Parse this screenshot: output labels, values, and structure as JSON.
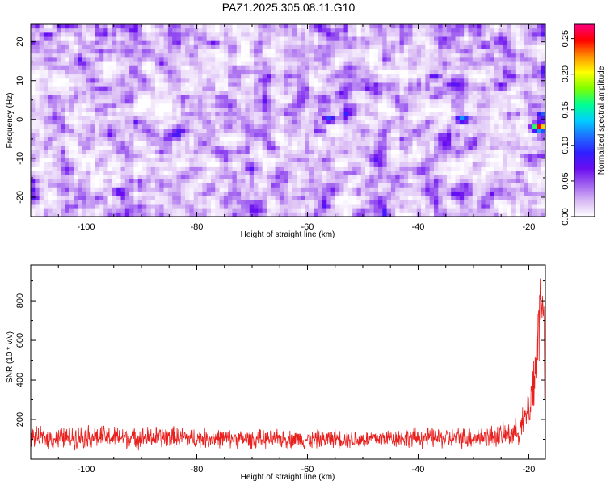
{
  "title": "PAZ1.2025.305.08.11.G10",
  "colors": {
    "snr_line": "#e8201e",
    "colormap": [
      "#ffffff",
      "#d8b8f4",
      "#a060f0",
      "#6a0df0",
      "#3020ff",
      "#1e6fff",
      "#00cfff",
      "#00ff90",
      "#80ff00",
      "#ffff00",
      "#ff9000",
      "#ff0000",
      "#ff0080"
    ]
  },
  "chart_data": [
    {
      "type": "heatmap",
      "name": "spectrogram",
      "xlabel": "Height of straight line (km)",
      "ylabel": "Frequency (Hz)",
      "xlim": [
        -110,
        -17
      ],
      "ylim": [
        -25,
        24.5
      ],
      "xticks": [
        -100,
        -80,
        -60,
        -40,
        -20
      ],
      "yticks": [
        -20,
        -10,
        0,
        10,
        20
      ],
      "colorbar": {
        "label": "Normalized spectral amplitude",
        "range": [
          0,
          0.27
        ],
        "ticks": [
          "0.00",
          "0.05",
          "0.10",
          "0.15",
          "0.20",
          "0.25"
        ]
      },
      "hotspots": [
        {
          "x": -18,
          "y": -2,
          "value": 0.26
        },
        {
          "x": -17.5,
          "y": 1,
          "value": 0.12
        },
        {
          "x": -32,
          "y": 0,
          "value": 0.13
        },
        {
          "x": -56,
          "y": 0,
          "value": 0.11
        },
        {
          "x": -94,
          "y": -18.5,
          "value": 0.09
        },
        {
          "x": -107,
          "y": 21.5,
          "value": 0.08
        },
        {
          "x": -37,
          "y": 11,
          "value": 0.08
        },
        {
          "x": -25,
          "y": 8.5,
          "value": 0.08
        },
        {
          "x": -28,
          "y": 19,
          "value": 0.07
        },
        {
          "x": -77,
          "y": 19.5,
          "value": 0.07
        }
      ]
    },
    {
      "type": "line",
      "name": "snr",
      "xlabel": "Height of straight line (km)",
      "ylabel": "SNR (10 * v/v)",
      "xlim": [
        -110,
        -17
      ],
      "ylim": [
        0,
        980
      ],
      "xticks": [
        -100,
        -80,
        -60,
        -40,
        -20
      ],
      "yticks": [
        200,
        400,
        600,
        800
      ],
      "series": [
        {
          "x": [
            -110,
            -105,
            -100,
            -95,
            -90,
            -85,
            -80,
            -75,
            -70,
            -65,
            -60,
            -55,
            -50,
            -45,
            -40,
            -35,
            -30,
            -25,
            -22,
            -21,
            -20,
            -19.5,
            -19,
            -18.5,
            -18,
            -17.5,
            -17
          ],
          "y": [
            110,
            105,
            115,
            110,
            108,
            112,
            106,
            104,
            100,
            102,
            98,
            104,
            100,
            106,
            108,
            104,
            110,
            118,
            140,
            180,
            250,
            320,
            420,
            560,
            760,
            900,
            300
          ],
          "spread": [
            60,
            65,
            70,
            65,
            65,
            65,
            60,
            55,
            55,
            55,
            55,
            55,
            55,
            55,
            60,
            60,
            65,
            70,
            80,
            100,
            130,
            170,
            220,
            260,
            300,
            260,
            200
          ]
        }
      ]
    }
  ]
}
